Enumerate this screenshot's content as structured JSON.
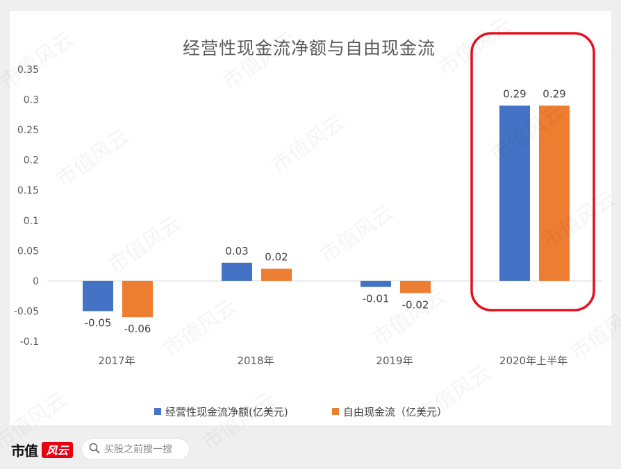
{
  "watermark": "市值风云",
  "chart_data": {
    "type": "bar",
    "title": "经营性现金流净额与自由现金流",
    "categories": [
      "2017年",
      "2018年",
      "2019年",
      "2020年上半年"
    ],
    "series": [
      {
        "name": "经营性现金流净额(亿美元)",
        "color": "#4472C4",
        "values": [
          -0.05,
          0.03,
          -0.01,
          0.29
        ]
      },
      {
        "name": "自由现金流（亿美元）",
        "color": "#ED7D31",
        "values": [
          -0.06,
          0.02,
          -0.02,
          0.29
        ]
      }
    ],
    "yticks": [
      "0.35",
      "0.3",
      "0.25",
      "0.2",
      "0.15",
      "0.1",
      "0.05",
      "0",
      "-0.05",
      "-0.1"
    ],
    "ylim": [
      -0.1,
      0.35
    ],
    "xlabel": "",
    "ylabel": "",
    "grid": false,
    "data_labels": true,
    "legend": "bottom",
    "highlight": {
      "category_index": 3,
      "color": "#E3101D"
    }
  },
  "footer": {
    "logo_text": "市值",
    "logo_badge_text": "风云",
    "logo_badge_color": "#E60012",
    "search": {
      "placeholder": "买股之前搜一搜",
      "icon": "search-icon"
    }
  }
}
